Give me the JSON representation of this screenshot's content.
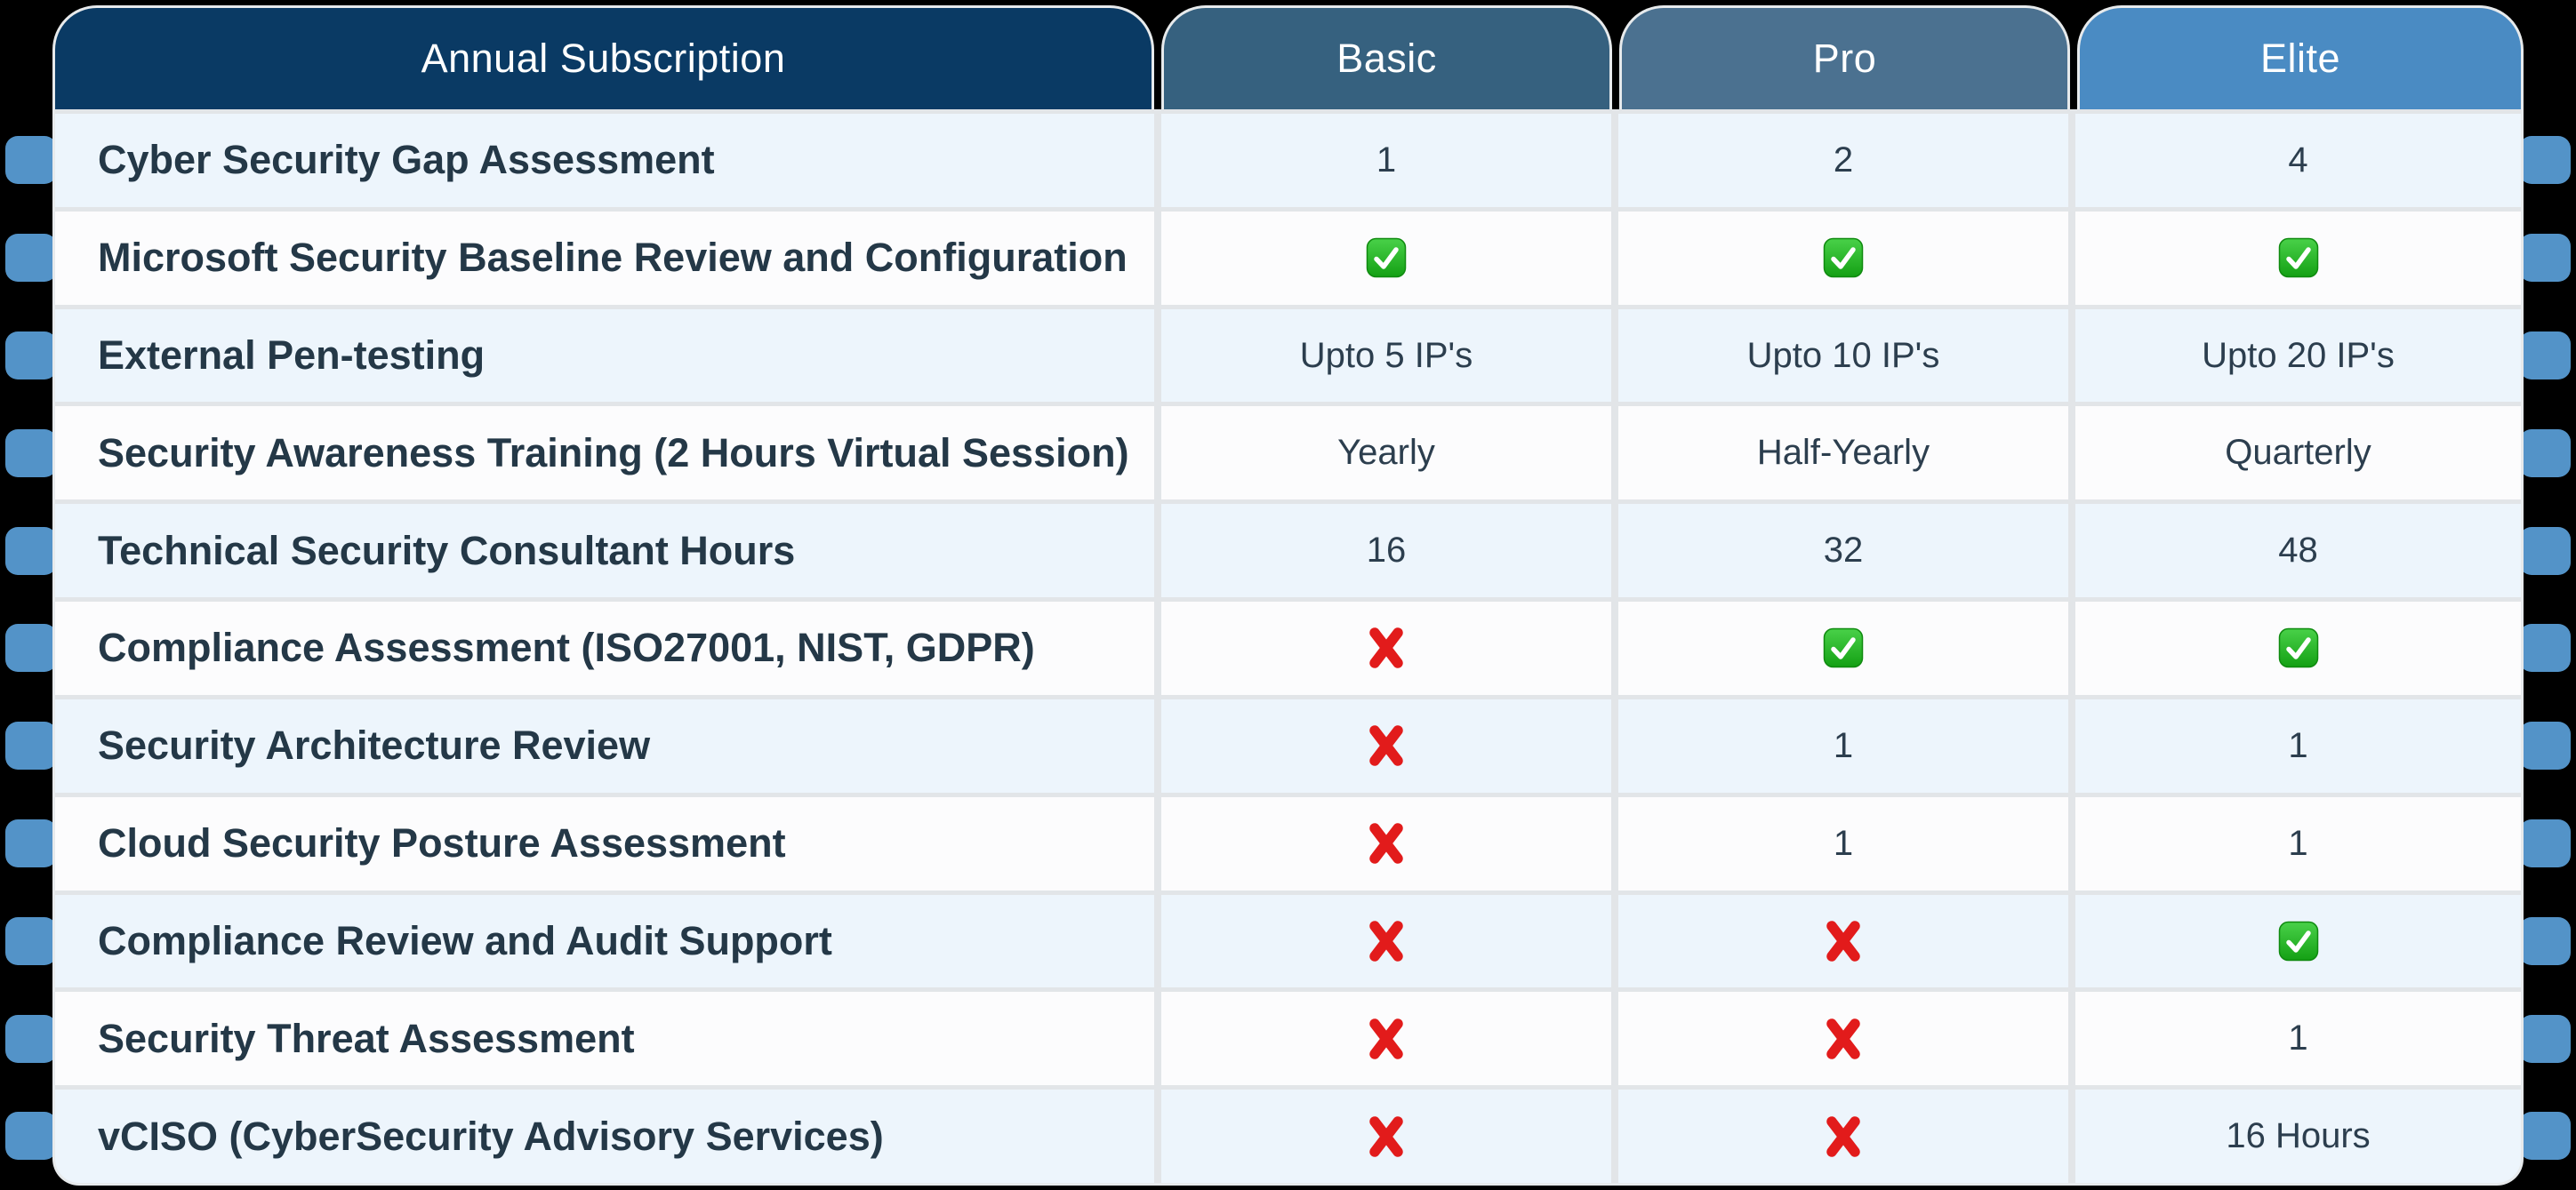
{
  "chart_data": {
    "type": "table",
    "title": "Annual Subscription",
    "columns": [
      "Annual Subscription",
      "Basic",
      "Pro",
      "Elite"
    ],
    "rows": [
      [
        "Cyber Security Gap Assessment",
        "1",
        "2",
        "4"
      ],
      [
        "Microsoft Security Baseline Review and Configuration",
        "check",
        "check",
        "check"
      ],
      [
        "External Pen-testing",
        "Upto 5 IP's",
        "Upto 10 IP's",
        "Upto 20 IP's"
      ],
      [
        "Security Awareness Training (2 Hours Virtual Session)",
        "Yearly",
        "Half-Yearly",
        "Quarterly"
      ],
      [
        "Technical Security Consultant Hours",
        "16",
        "32",
        "48"
      ],
      [
        "Compliance Assessment (ISO27001, NIST, GDPR)",
        "cross",
        "check",
        "check"
      ],
      [
        "Security Architecture Review",
        "cross",
        "1",
        "1"
      ],
      [
        "Cloud Security Posture Assessment",
        "cross",
        "1",
        "1"
      ],
      [
        "Compliance Review and Audit Support",
        "cross",
        "cross",
        "check"
      ],
      [
        "Security Threat Assessment",
        "cross",
        "cross",
        "1"
      ],
      [
        "vCISO (CyberSecurity Advisory Services)",
        "cross",
        "cross",
        "16 Hours"
      ]
    ],
    "cell_tokens": {
      "check": "included (green check icon)",
      "cross": "not included (red cross icon)"
    },
    "layout_hints": {
      "grid": "on",
      "alternating_rows": true,
      "side_tabs_per_row": true
    }
  },
  "colors": {
    "page_bg": "#000000",
    "header_main_bg": "#0A3A64",
    "header_basic_bg": "#36617F",
    "header_pro_bg": "#4B7190",
    "header_elite_bg": "#4A8BC3",
    "side_tab": "#5393C8",
    "row_light_blue": "#EDF5FC",
    "row_white": "#FCFCFD",
    "grid_line": "#E2E5E8",
    "header_text": "#FFFFFF",
    "feature_text": "#243847",
    "value_text": "#2C3E4E",
    "check_green": "#1FAF1F",
    "cross_red": "#E21B1B"
  }
}
